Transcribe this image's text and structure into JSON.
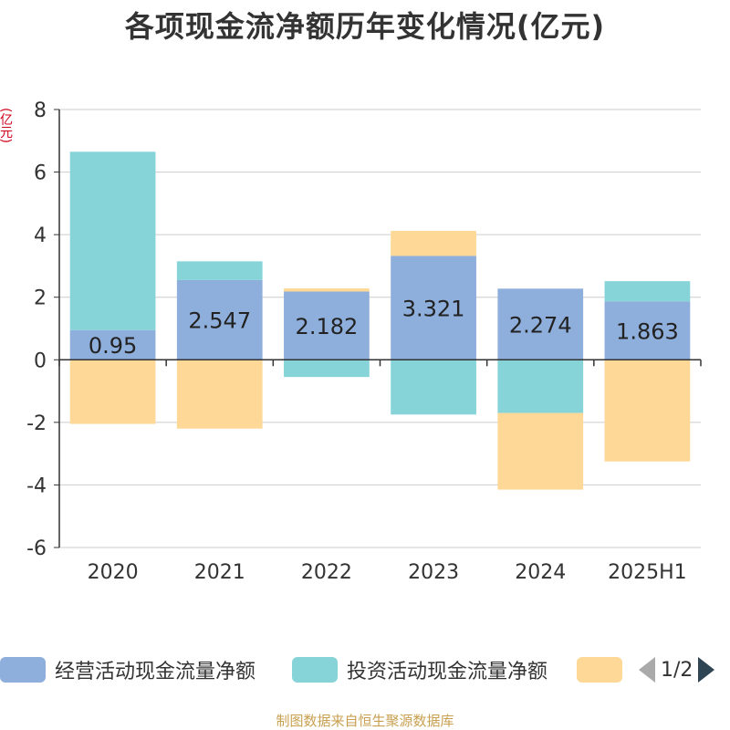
{
  "title": "各项现金流净额历年变化情况(亿元)",
  "unit_label": "(亿元)",
  "source": "制图数据来自恒生聚源数据库",
  "legend_page": "1/2",
  "colors": {
    "operating": "#8eaedb",
    "investing": "#87d4d8",
    "financing": "#fed897",
    "axis": "#333333",
    "grid": "#cccccc"
  },
  "chart_data": {
    "type": "bar",
    "stacked": true,
    "categories": [
      "2020",
      "2021",
      "2022",
      "2023",
      "2024",
      "2025H1"
    ],
    "ylim": [
      -6,
      8
    ],
    "yticks": [
      8,
      6,
      4,
      2,
      0,
      -2,
      -4,
      -6
    ],
    "series": [
      {
        "name": "经营活动现金流量净额",
        "values": [
          0.95,
          2.547,
          2.182,
          3.321,
          2.274,
          1.863
        ],
        "labels": [
          "0.95",
          "2.547",
          "2.182",
          "3.321",
          "2.274",
          "1.863"
        ]
      },
      {
        "name": "投资活动现金流量净额",
        "values": [
          5.7,
          0.6,
          -0.55,
          -1.75,
          -1.7,
          0.65
        ]
      },
      {
        "name": "",
        "values": [
          -2.05,
          -2.2,
          0.1,
          0.8,
          -2.45,
          -3.25
        ]
      }
    ],
    "legend_position": "bottom"
  }
}
